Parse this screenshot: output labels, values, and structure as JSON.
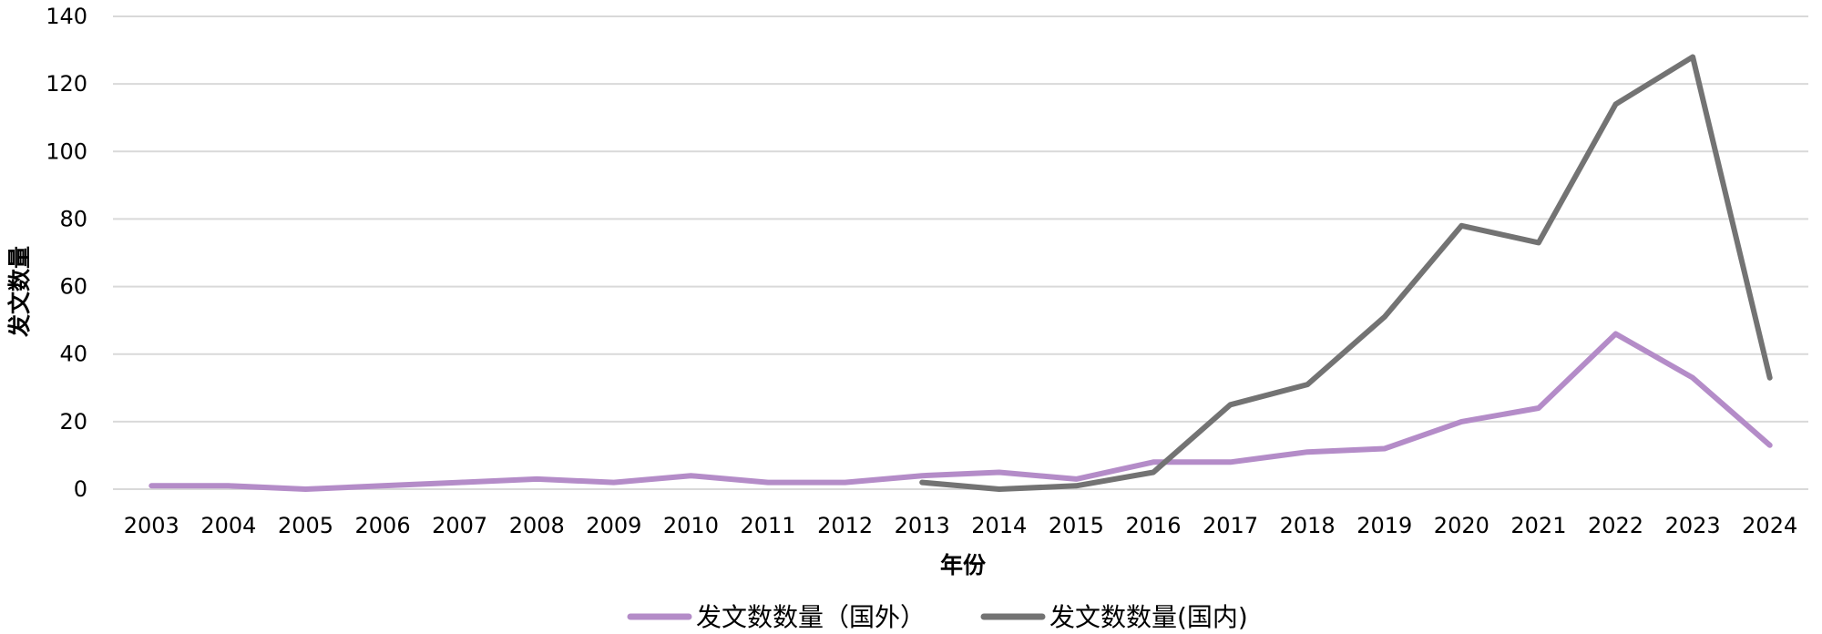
{
  "chart_data": {
    "type": "line",
    "xlabel": "年份",
    "ylabel": "发文数量",
    "ylim": [
      0,
      140
    ],
    "yticks": [
      "0",
      "20",
      "40",
      "60",
      "80",
      "100",
      "120",
      "140"
    ],
    "categories": [
      "2003",
      "2004",
      "2005",
      "2006",
      "2007",
      "2008",
      "2009",
      "2010",
      "2011",
      "2012",
      "2013",
      "2014",
      "2015",
      "2016",
      "2017",
      "2018",
      "2019",
      "2020",
      "2021",
      "2022",
      "2023",
      "2024"
    ],
    "grid": true,
    "legend_position": "bottom",
    "series": [
      {
        "name": "发文数数量（国外）",
        "color": "#b48cc8",
        "values": [
          1,
          1,
          0,
          1,
          2,
          3,
          2,
          4,
          2,
          2,
          4,
          5,
          3,
          8,
          8,
          11,
          12,
          20,
          24,
          46,
          33,
          13
        ]
      },
      {
        "name": "发文数数量(国内)",
        "color": "#737373",
        "values": [
          null,
          null,
          null,
          null,
          null,
          null,
          null,
          null,
          null,
          null,
          2,
          0,
          1,
          5,
          25,
          31,
          51,
          78,
          73,
          114,
          128,
          33
        ]
      }
    ]
  }
}
